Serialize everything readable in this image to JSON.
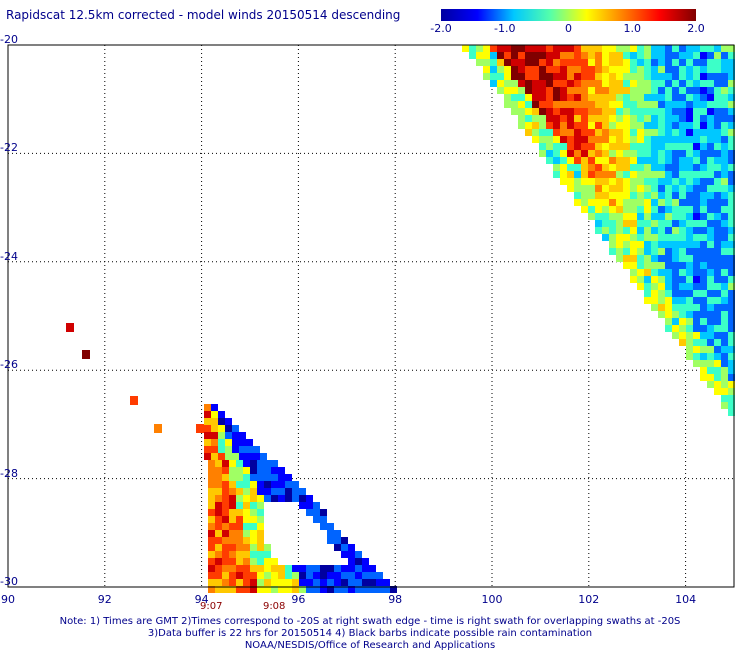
{
  "title": "Rapidscat 12.5km corrected - model winds 20150514 descending",
  "colorbar": {
    "ticks": [
      "-2.0",
      "-1.0",
      "0",
      "1.0",
      "2.0"
    ],
    "tick_values": [
      -2,
      -1,
      0,
      1,
      2
    ],
    "colors": [
      "#0000a0",
      "#0000ff",
      "#00c8ff",
      "#55ffaa",
      "#ffff00",
      "#ff8000",
      "#ff0000",
      "#800000"
    ]
  },
  "axes": {
    "x_ticks": [
      "90",
      "92",
      "94",
      "96",
      "98",
      "100",
      "102",
      "104"
    ],
    "x_values": [
      90,
      92,
      94,
      96,
      98,
      100,
      102,
      104
    ],
    "y_ticks": [
      "-20",
      "-22",
      "-24",
      "-26",
      "-28",
      "-30"
    ],
    "y_values": [
      -20,
      -22,
      -24,
      -26,
      -28,
      -30
    ],
    "xlim": [
      90,
      105
    ],
    "ylim": [
      -30,
      -20
    ],
    "grid": "dotted"
  },
  "swath_times": [
    {
      "label": "9:07",
      "lon": 94.2
    },
    {
      "label": "9:08",
      "lon": 95.5
    }
  ],
  "notes": [
    "Note: 1) Times are GMT 2)Times correspond to -20S at right swath edge - time is right swath for overlapping swaths at -20S",
    "3)Data buffer is 22 hrs for 20150514 4) Black barbs indicate possible rain contamination",
    "NOAA/NESDIS/Office of Research and Applications"
  ]
}
